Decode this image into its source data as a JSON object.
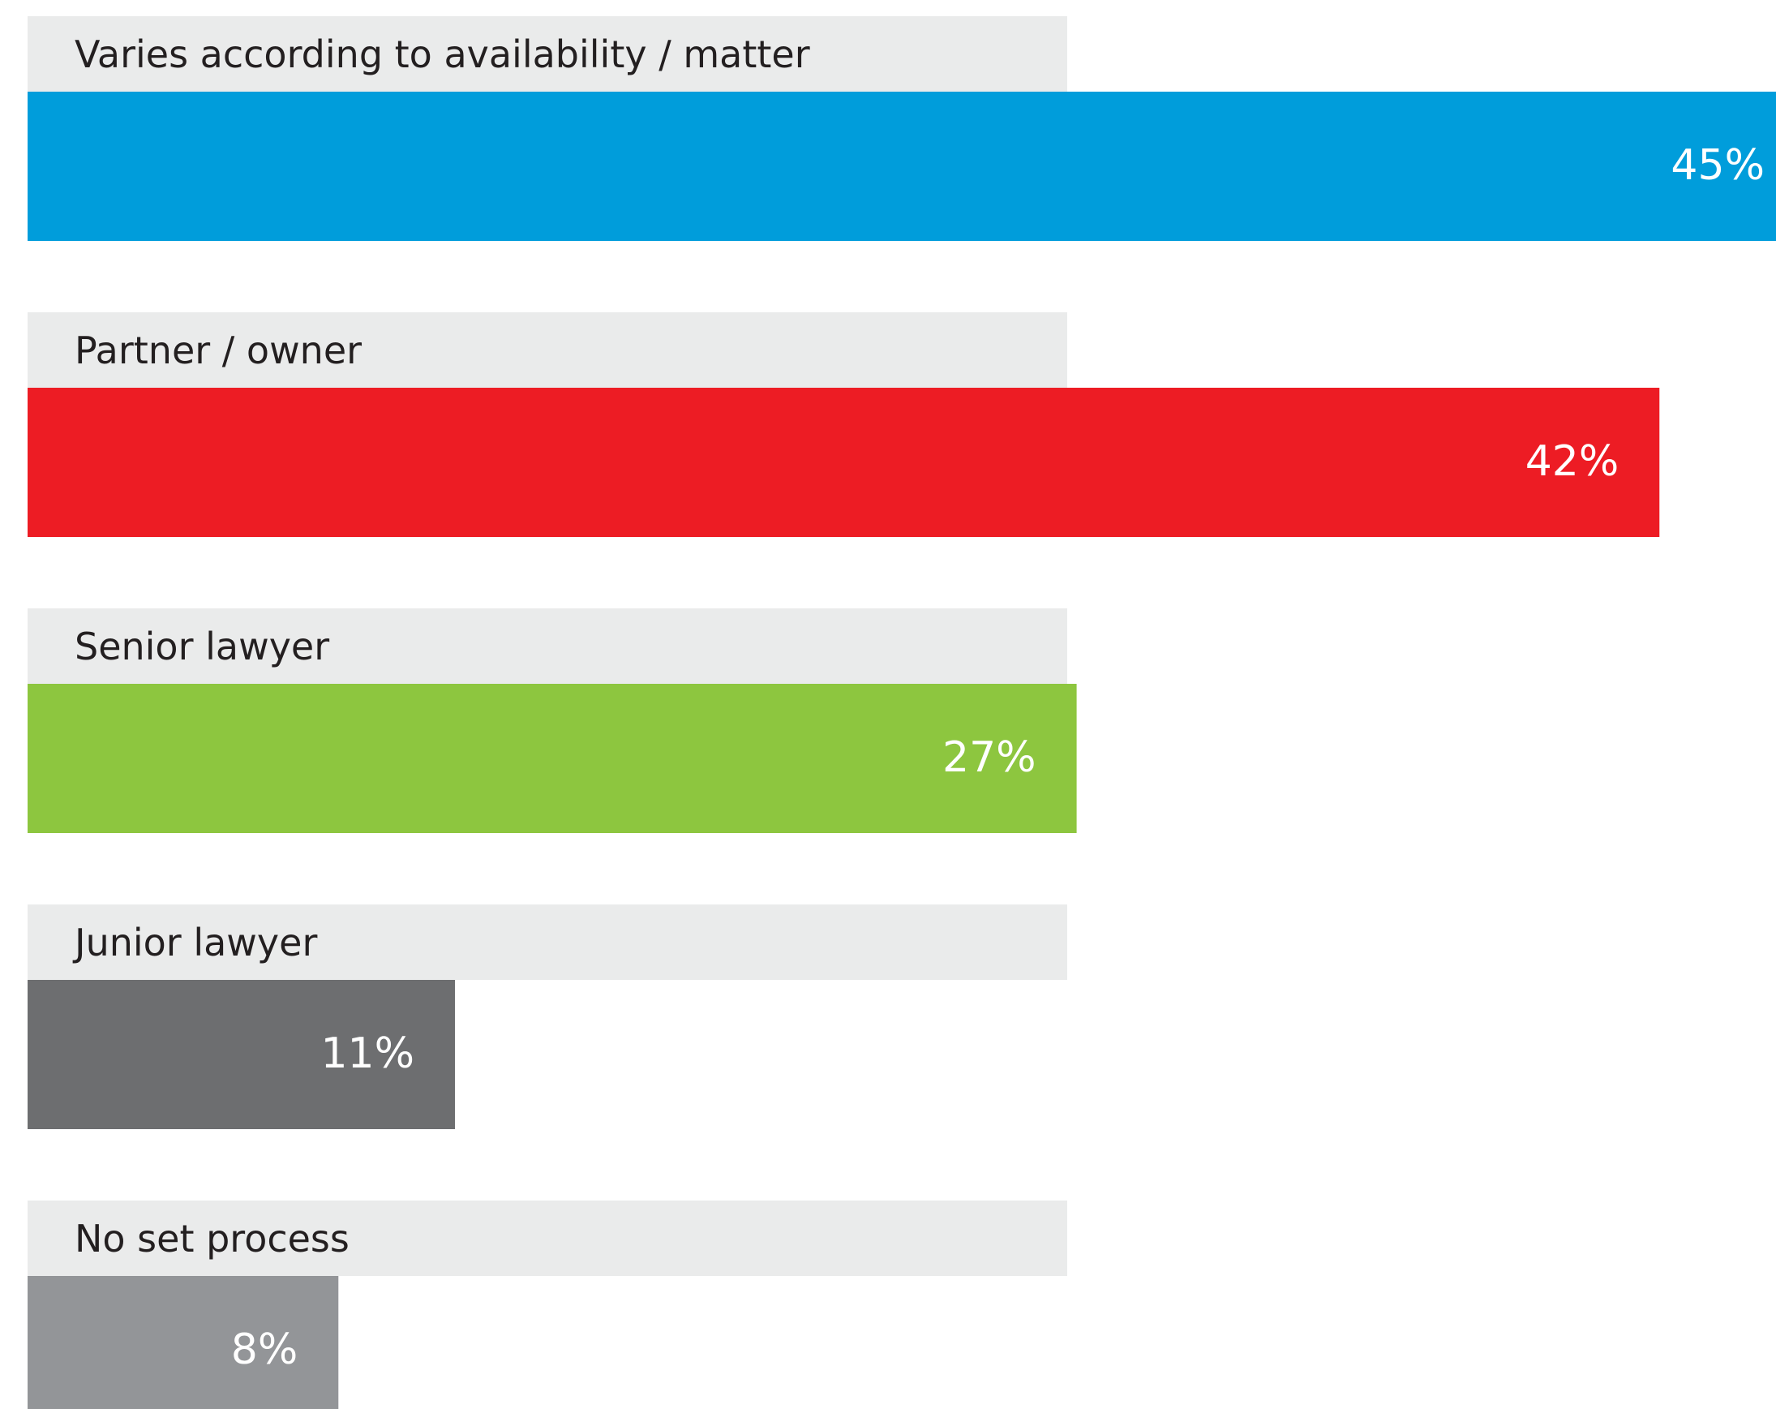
{
  "chart_data": {
    "type": "bar",
    "orientation": "horizontal",
    "categories": [
      "Varies according to availability / matter",
      "Partner / owner",
      "Senior lawyer",
      "Junior lawyer",
      "No set process"
    ],
    "values": [
      45,
      42,
      27,
      11,
      8
    ],
    "value_labels": [
      "45%",
      "42%",
      "27%",
      "11%",
      "8%"
    ],
    "colors": [
      "#009ddb",
      "#ed1c24",
      "#8dc63f",
      "#6d6e70",
      "#939598"
    ],
    "xlim": [
      0,
      45
    ]
  }
}
